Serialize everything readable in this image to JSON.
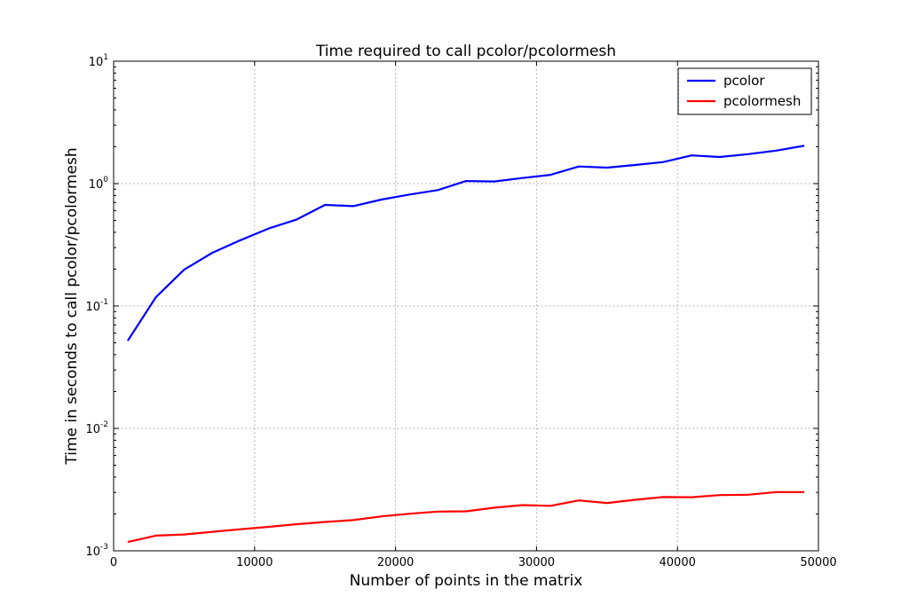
{
  "chart_data": {
    "type": "line",
    "title": "Time required to call pcolor/pcolormesh",
    "xlabel": "Number of points in the matrix",
    "ylabel": "Time in seconds to call pcolor/pcolormesh",
    "xlim": [
      0,
      50000
    ],
    "ylim": [
      0.001,
      10
    ],
    "yscale": "log",
    "grid": true,
    "legend_position": "top-right",
    "x_ticks": [
      {
        "value": 0,
        "label": "0"
      },
      {
        "value": 10000,
        "label": "10000"
      },
      {
        "value": 20000,
        "label": "20000"
      },
      {
        "value": 30000,
        "label": "30000"
      },
      {
        "value": 40000,
        "label": "40000"
      },
      {
        "value": 50000,
        "label": "50000"
      }
    ],
    "y_ticks": [
      {
        "value": 0.001,
        "base": "10",
        "exp": "-3"
      },
      {
        "value": 0.01,
        "base": "10",
        "exp": "-2"
      },
      {
        "value": 0.1,
        "base": "10",
        "exp": "-1"
      },
      {
        "value": 1,
        "base": "10",
        "exp": "0"
      },
      {
        "value": 10,
        "base": "10",
        "exp": "1"
      }
    ],
    "x": [
      1000,
      3000,
      5000,
      7000,
      9000,
      11000,
      13000,
      15000,
      17000,
      19000,
      21000,
      23000,
      25000,
      27000,
      29000,
      31000,
      33000,
      35000,
      37000,
      39000,
      41000,
      43000,
      45000,
      47000,
      49000
    ],
    "series": [
      {
        "name": "pcolor",
        "color": "#0000ff",
        "values": [
          0.052,
          0.118,
          0.198,
          0.272,
          0.345,
          0.43,
          0.51,
          0.67,
          0.655,
          0.74,
          0.815,
          0.885,
          1.05,
          1.04,
          1.11,
          1.18,
          1.38,
          1.35,
          1.42,
          1.5,
          1.7,
          1.65,
          1.74,
          1.86,
          2.04
        ]
      },
      {
        "name": "pcolormesh",
        "color": "#ff0000",
        "values": [
          0.00118,
          0.00133,
          0.00136,
          0.00143,
          0.0015,
          0.00157,
          0.00165,
          0.00172,
          0.00178,
          0.00191,
          0.00201,
          0.00209,
          0.0021,
          0.00225,
          0.00236,
          0.00233,
          0.00258,
          0.00246,
          0.00261,
          0.00275,
          0.00274,
          0.00285,
          0.00287,
          0.00302,
          0.00302
        ]
      }
    ]
  }
}
